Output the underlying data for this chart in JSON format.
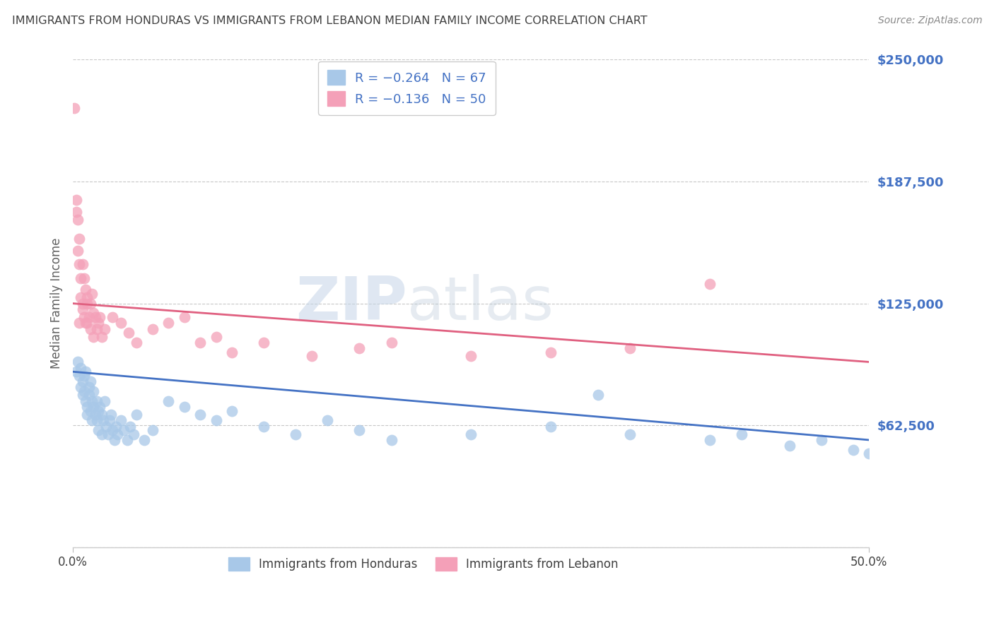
{
  "title": "IMMIGRANTS FROM HONDURAS VS IMMIGRANTS FROM LEBANON MEDIAN FAMILY INCOME CORRELATION CHART",
  "source": "Source: ZipAtlas.com",
  "ylabel": "Median Family Income",
  "xlim": [
    0.0,
    0.5
  ],
  "ylim": [
    0,
    250000
  ],
  "yticks": [
    0,
    62500,
    125000,
    187500,
    250000
  ],
  "ytick_labels": [
    "",
    "$62,500",
    "$125,000",
    "$187,500",
    "$250,000"
  ],
  "xtick_positions": [
    0.0,
    0.5
  ],
  "xtick_labels": [
    "0.0%",
    "50.0%"
  ],
  "background_color": "#ffffff",
  "watermark_zip": "ZIP",
  "watermark_atlas": "atlas",
  "legend_line1": "R = −0.264   N = 67",
  "legend_line2": "R = −0.136   N = 50",
  "legend_label1": "Immigrants from Honduras",
  "legend_label2": "Immigrants from Lebanon",
  "blue_scatter": "#a8c8e8",
  "pink_scatter": "#f4a0b8",
  "line_blue": "#4472c4",
  "line_pink": "#e06080",
  "grid_color": "#c8c8c8",
  "title_color": "#404040",
  "ylabel_color": "#606060",
  "ytick_color": "#4472c4",
  "xtick_color": "#404040",
  "source_color": "#888888",
  "legend_text_color": "#4472c4",
  "honduras_x": [
    0.002,
    0.003,
    0.004,
    0.005,
    0.005,
    0.006,
    0.006,
    0.007,
    0.007,
    0.008,
    0.008,
    0.009,
    0.009,
    0.01,
    0.01,
    0.011,
    0.011,
    0.012,
    0.012,
    0.013,
    0.013,
    0.014,
    0.015,
    0.015,
    0.016,
    0.016,
    0.017,
    0.018,
    0.018,
    0.019,
    0.02,
    0.021,
    0.022,
    0.023,
    0.024,
    0.025,
    0.026,
    0.027,
    0.028,
    0.03,
    0.032,
    0.034,
    0.036,
    0.038,
    0.04,
    0.045,
    0.05,
    0.06,
    0.07,
    0.08,
    0.09,
    0.1,
    0.12,
    0.14,
    0.16,
    0.18,
    0.2,
    0.25,
    0.3,
    0.35,
    0.4,
    0.42,
    0.45,
    0.47,
    0.49,
    0.5,
    0.33
  ],
  "honduras_y": [
    90000,
    95000,
    88000,
    82000,
    92000,
    78000,
    85000,
    80000,
    88000,
    75000,
    90000,
    72000,
    68000,
    82000,
    78000,
    70000,
    85000,
    65000,
    75000,
    72000,
    80000,
    68000,
    65000,
    75000,
    70000,
    60000,
    72000,
    68000,
    58000,
    65000,
    75000,
    62000,
    58000,
    65000,
    68000,
    60000,
    55000,
    62000,
    58000,
    65000,
    60000,
    55000,
    62000,
    58000,
    68000,
    55000,
    60000,
    75000,
    72000,
    68000,
    65000,
    70000,
    62000,
    58000,
    65000,
    60000,
    55000,
    58000,
    62000,
    58000,
    55000,
    58000,
    52000,
    55000,
    50000,
    48000,
    78000
  ],
  "lebanon_x": [
    0.001,
    0.002,
    0.003,
    0.004,
    0.004,
    0.005,
    0.005,
    0.006,
    0.006,
    0.007,
    0.008,
    0.009,
    0.009,
    0.01,
    0.011,
    0.012,
    0.013,
    0.014,
    0.015,
    0.016,
    0.017,
    0.018,
    0.02,
    0.025,
    0.03,
    0.035,
    0.04,
    0.05,
    0.06,
    0.07,
    0.08,
    0.09,
    0.1,
    0.12,
    0.15,
    0.18,
    0.2,
    0.25,
    0.3,
    0.35,
    0.4,
    0.002,
    0.003,
    0.004,
    0.006,
    0.007,
    0.009,
    0.011,
    0.013,
    0.008
  ],
  "lebanon_y": [
    225000,
    178000,
    168000,
    158000,
    145000,
    138000,
    128000,
    122000,
    145000,
    138000,
    132000,
    125000,
    128000,
    118000,
    125000,
    130000,
    120000,
    118000,
    112000,
    115000,
    118000,
    108000,
    112000,
    118000,
    115000,
    110000,
    105000,
    112000,
    115000,
    118000,
    105000,
    108000,
    100000,
    105000,
    98000,
    102000,
    105000,
    98000,
    100000,
    102000,
    135000,
    172000,
    152000,
    115000,
    125000,
    118000,
    115000,
    112000,
    108000,
    115000
  ]
}
